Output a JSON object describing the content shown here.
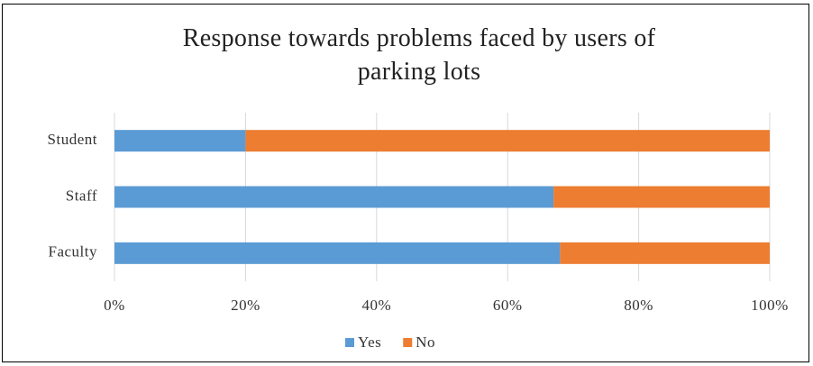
{
  "chart_data": {
    "type": "stacked-bar-horizontal",
    "title": "Response towards problems faced by users of parking lots",
    "categories": [
      "Student",
      "Staff",
      "Faculty"
    ],
    "series": [
      {
        "name": "Yes",
        "color": "#5b9bd5",
        "values": [
          20,
          67,
          68
        ]
      },
      {
        "name": "No",
        "color": "#ed7d31",
        "values": [
          80,
          33,
          32
        ]
      }
    ],
    "xlim": [
      0,
      100
    ],
    "xticks": [
      {
        "value": 0,
        "label": "0%"
      },
      {
        "value": 20,
        "label": "20%"
      },
      {
        "value": 40,
        "label": "40%"
      },
      {
        "value": 60,
        "label": "60%"
      },
      {
        "value": 80,
        "label": "80%"
      },
      {
        "value": 100,
        "label": "100%"
      }
    ],
    "grid": true,
    "legend": "bottom"
  }
}
